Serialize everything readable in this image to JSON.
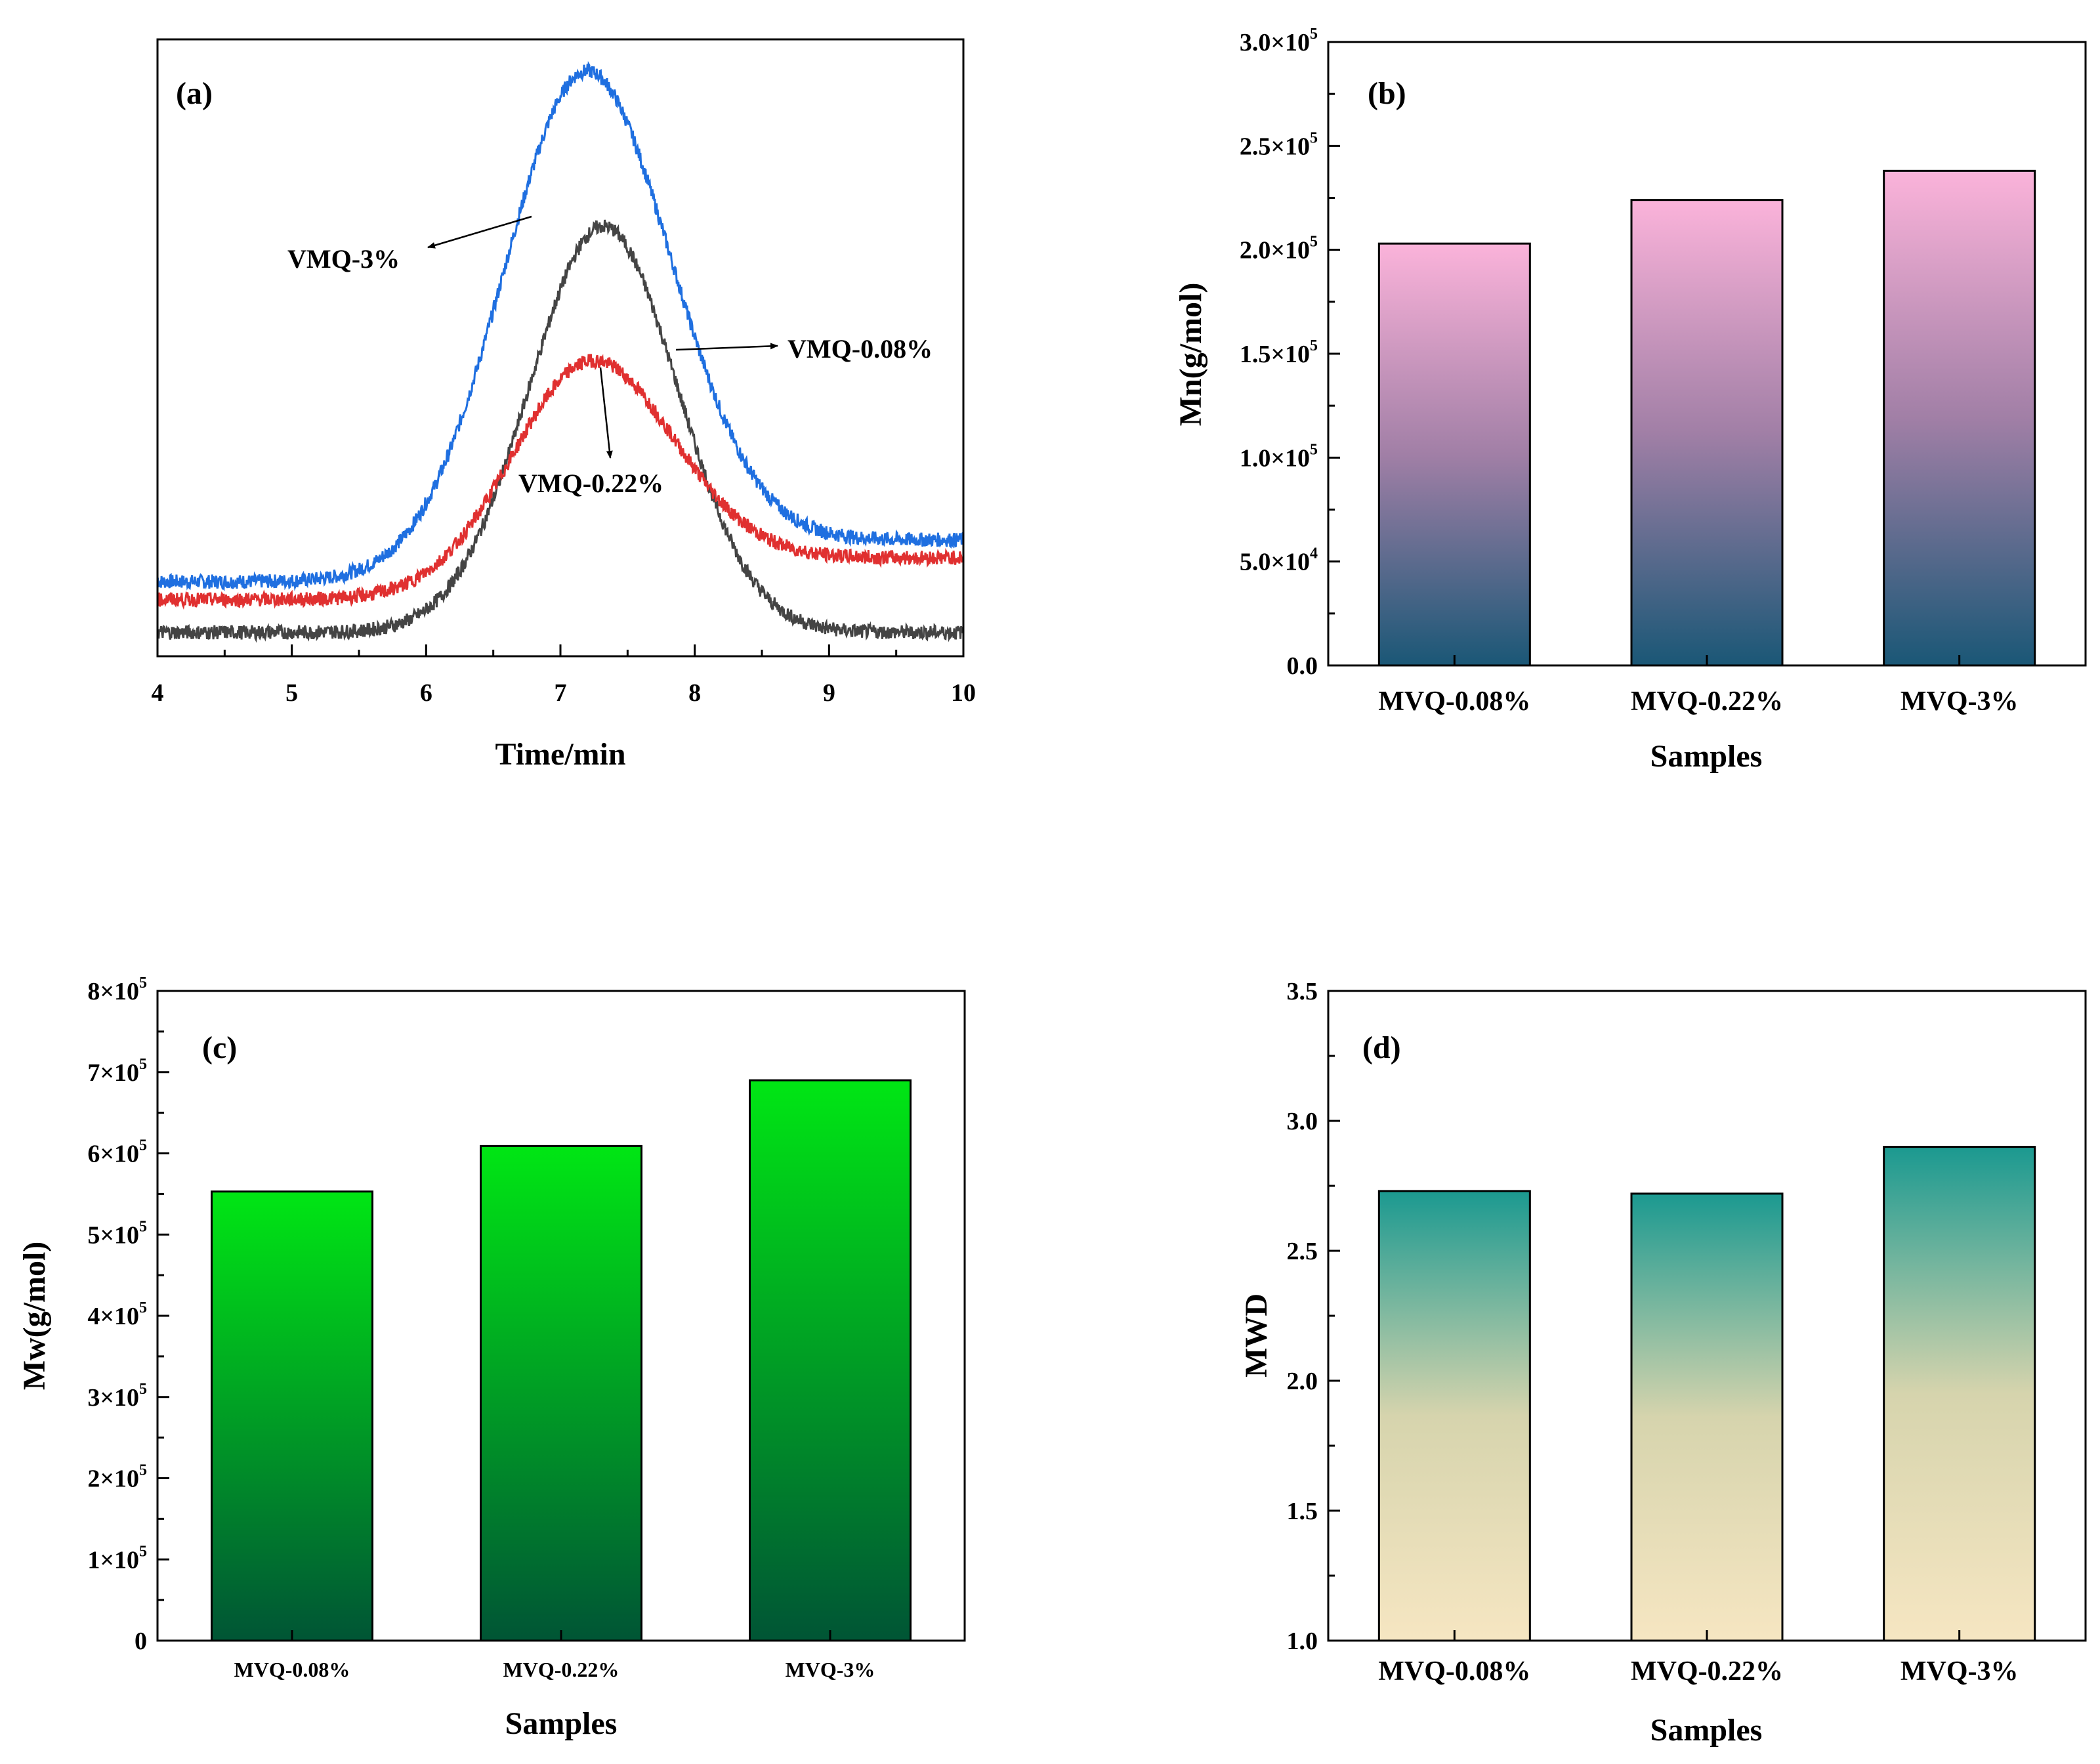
{
  "colors": {
    "vmq3": "#1f6fe0",
    "vmq008": "#444444",
    "vmq022": "#e03030",
    "mn_top": "#fbb3da",
    "mn_mid": "#a17fa6",
    "mn_bottom": "#1a5776",
    "mw_top": "#00e614",
    "mw_bottom": "#005535",
    "mwd_top": "#1b9990",
    "mwd_mid": "#d6d4ad",
    "mwd_bottom": "#f6e6c2"
  },
  "chart_data": [
    {
      "id": "a",
      "type": "line",
      "panel_label": "(a)",
      "xlabel": "Time/min",
      "ylabel": "",
      "xlim": [
        4,
        10
      ],
      "ylim": [
        0,
        1
      ],
      "xticks": [
        "4",
        "5",
        "6",
        "7",
        "8",
        "9",
        "10"
      ],
      "noise": 0.012,
      "series": [
        {
          "name": "VMQ-3%",
          "color_key": "vmq3",
          "base": 0.125,
          "tail": 0.195,
          "peak": 0.98,
          "center": 7.2,
          "width": 0.62
        },
        {
          "name": "VMQ-0.08%",
          "color_key": "vmq008",
          "base": 0.04,
          "tail": 0.04,
          "peak": 0.72,
          "center": 7.32,
          "width": 0.55
        },
        {
          "name": "VMQ-0.22%",
          "color_key": "vmq022",
          "base": 0.095,
          "tail": 0.165,
          "peak": 0.495,
          "center": 7.25,
          "width": 0.6
        }
      ],
      "annotations": [
        {
          "text": "VMQ-3%",
          "series": "VMQ-3%"
        },
        {
          "text": "VMQ-0.08%",
          "series": "VMQ-0.08%"
        },
        {
          "text": "VMQ-0.22%",
          "series": "VMQ-0.22%"
        }
      ]
    },
    {
      "id": "b",
      "type": "bar",
      "panel_label": "(b)",
      "xlabel": "Samples",
      "ylabel": "Mn(g/mol)",
      "categories": [
        "MVQ-0.08%",
        "MVQ-0.22%",
        "MVQ-3%"
      ],
      "values": [
        203000,
        224000,
        238000
      ],
      "ylim": [
        0,
        300000
      ],
      "ytick_values": [
        0,
        50000,
        100000,
        150000,
        200000,
        250000,
        300000
      ],
      "ytick_labels": [
        {
          "base": "0.0",
          "exp": ""
        },
        {
          "base": "5.0×10",
          "exp": "4"
        },
        {
          "base": "1.0×10",
          "exp": "5"
        },
        {
          "base": "1.5×10",
          "exp": "5"
        },
        {
          "base": "2.0×10",
          "exp": "5"
        },
        {
          "base": "2.5×10",
          "exp": "5"
        },
        {
          "base": "3.0×10",
          "exp": "5"
        }
      ],
      "gradient": [
        "mn_top",
        "mn_mid",
        "mn_bottom"
      ]
    },
    {
      "id": "c",
      "type": "bar",
      "panel_label": "(c)",
      "xlabel": "Samples",
      "ylabel": "Mw(g/mol)",
      "categories": [
        "MVQ-0.08%",
        "MVQ-0.22%",
        "MVQ-3%"
      ],
      "values": [
        553000,
        609000,
        690000
      ],
      "ylim": [
        0,
        800000
      ],
      "ytick_values": [
        0,
        100000,
        200000,
        300000,
        400000,
        500000,
        600000,
        700000,
        800000
      ],
      "ytick_labels": [
        {
          "base": "0",
          "exp": ""
        },
        {
          "base": "1×10",
          "exp": "5"
        },
        {
          "base": "2×10",
          "exp": "5"
        },
        {
          "base": "3×10",
          "exp": "5"
        },
        {
          "base": "4×10",
          "exp": "5"
        },
        {
          "base": "5×10",
          "exp": "5"
        },
        {
          "base": "6×10",
          "exp": "5"
        },
        {
          "base": "7×10",
          "exp": "5"
        },
        {
          "base": "8×10",
          "exp": "5"
        }
      ],
      "gradient": [
        "mw_top",
        "mw_bottom"
      ]
    },
    {
      "id": "d",
      "type": "bar",
      "panel_label": "(d)",
      "xlabel": "Samples",
      "ylabel": "MWD",
      "categories": [
        "MVQ-0.08%",
        "MVQ-0.22%",
        "MVQ-3%"
      ],
      "values": [
        2.73,
        2.72,
        2.9
      ],
      "ylim": [
        1.0,
        3.5
      ],
      "ytick_values": [
        1.0,
        1.5,
        2.0,
        2.5,
        3.0,
        3.5
      ],
      "ytick_labels": [
        {
          "base": "1.0",
          "exp": ""
        },
        {
          "base": "1.5",
          "exp": ""
        },
        {
          "base": "2.0",
          "exp": ""
        },
        {
          "base": "2.5",
          "exp": ""
        },
        {
          "base": "3.0",
          "exp": ""
        },
        {
          "base": "3.5",
          "exp": ""
        }
      ],
      "gradient": [
        "mwd_top",
        "mwd_mid",
        "mwd_bottom"
      ]
    }
  ]
}
